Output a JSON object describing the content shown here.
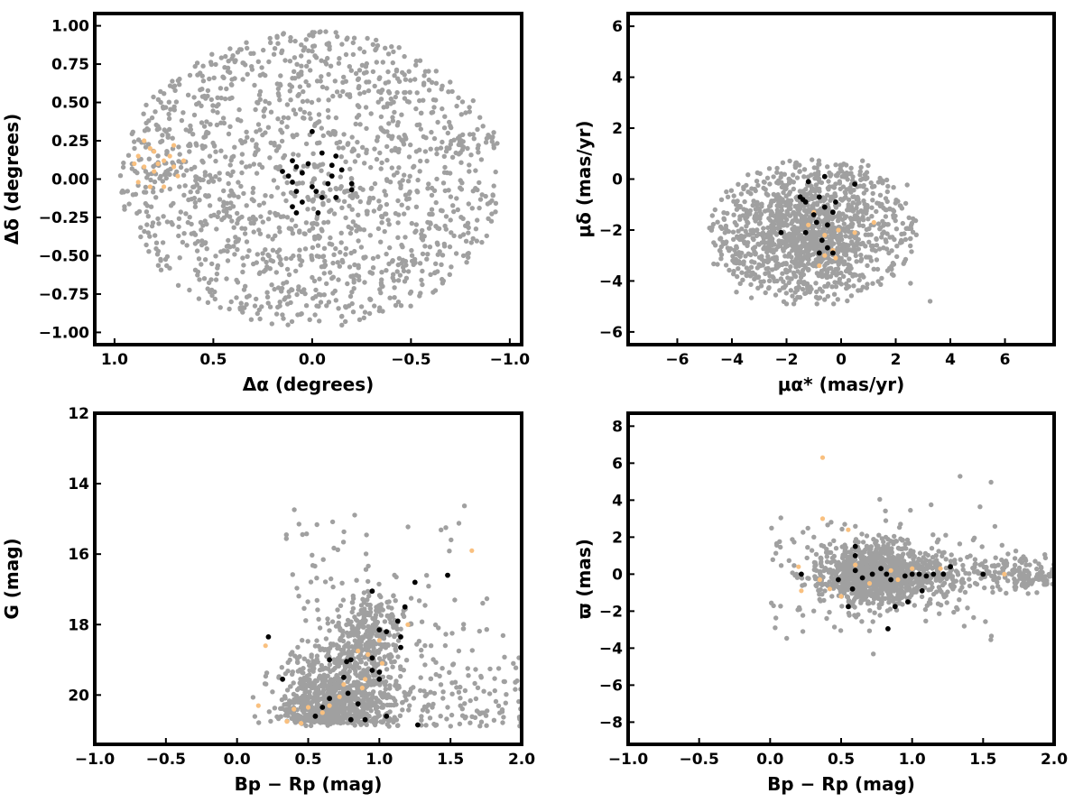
{
  "colors": {
    "background_stars": "#a0a0a0",
    "members": "#000000",
    "secondary": "#f9c07f"
  },
  "chart_data": [
    {
      "id": "sky",
      "type": "scatter",
      "xlabel": "Δα (degrees)",
      "ylabel": "Δδ (degrees)",
      "xlim": [
        1.1,
        -1.06
      ],
      "ylim": [
        -1.08,
        1.08
      ],
      "x_inverted": true,
      "xticks": [
        1.0,
        0.5,
        0.0,
        -0.5,
        -1.0
      ],
      "xtick_labels": [
        "1.0",
        "0.5",
        "0.0",
        "−0.5",
        "−1.0"
      ],
      "yticks": [
        1.0,
        0.75,
        0.5,
        0.25,
        0.0,
        -0.25,
        -0.5,
        -0.75,
        -1.0
      ],
      "ytick_labels": [
        "1.00",
        "0.75",
        "0.50",
        "0.25",
        "0.00",
        "−0.25",
        "−0.50",
        "−0.75",
        "−1.00"
      ],
      "background_field": {
        "shape": "disk",
        "center": [
          0.0,
          0.0
        ],
        "radius": 0.97,
        "count": 1500
      },
      "series": [
        {
          "color": "#000000",
          "points": [
            [
              0.15,
              0.05
            ],
            [
              0.1,
              0.12
            ],
            [
              0.08,
              0.08
            ],
            [
              0.05,
              0.04
            ],
            [
              0.0,
              0.31
            ],
            [
              -0.05,
              0.17
            ],
            [
              -0.1,
              0.09
            ],
            [
              -0.12,
              0.15
            ],
            [
              -0.15,
              0.06
            ],
            [
              -0.2,
              -0.03
            ],
            [
              -0.2,
              -0.07
            ],
            [
              0.1,
              -0.02
            ],
            [
              0.08,
              -0.08
            ],
            [
              0.05,
              -0.15
            ],
            [
              0.1,
              -0.18
            ],
            [
              0.08,
              -0.22
            ],
            [
              0.0,
              -0.05
            ],
            [
              -0.02,
              -0.08
            ],
            [
              -0.05,
              -0.12
            ],
            [
              -0.08,
              -0.03
            ],
            [
              -0.12,
              -0.12
            ],
            [
              -0.03,
              -0.22
            ],
            [
              -0.1,
              0.02
            ],
            [
              0.02,
              0.1
            ],
            [
              0.12,
              0.02
            ]
          ]
        },
        {
          "color": "#f9c07f",
          "points": [
            [
              0.85,
              0.25
            ],
            [
              0.82,
              0.2
            ],
            [
              0.88,
              0.15
            ],
            [
              0.8,
              0.18
            ],
            [
              0.75,
              0.12
            ],
            [
              0.7,
              0.22
            ],
            [
              0.72,
              0.15
            ],
            [
              0.78,
              0.1
            ],
            [
              0.85,
              0.08
            ],
            [
              0.8,
              0.05
            ],
            [
              0.88,
              -0.02
            ],
            [
              0.75,
              -0.05
            ],
            [
              0.68,
              0.02
            ],
            [
              0.65,
              0.12
            ],
            [
              0.7,
              0.08
            ],
            [
              0.9,
              0.1
            ],
            [
              0.82,
              -0.05
            ]
          ]
        }
      ]
    },
    {
      "id": "proper-motion",
      "type": "scatter",
      "xlabel": "μα* (mas/yr)",
      "ylabel": "μδ (mas/yr)",
      "xlim": [
        -7.8,
        7.8
      ],
      "ylim": [
        -6.5,
        6.5
      ],
      "xticks": [
        -6,
        -4,
        -2,
        0,
        2,
        4,
        6
      ],
      "xtick_labels": [
        "−6",
        "−4",
        "−2",
        "0",
        "2",
        "4",
        "6"
      ],
      "yticks": [
        6,
        4,
        2,
        0,
        -2,
        -4,
        -6
      ],
      "ytick_labels": [
        "6",
        "4",
        "2",
        "0",
        "−2",
        "−4",
        "−6"
      ],
      "background_field": {
        "shape": "ellipse",
        "center": [
          -1.0,
          -2.0
        ],
        "radius": [
          3.8,
          2.8
        ],
        "count": 1400
      },
      "series": [
        {
          "color": "#000000",
          "points": [
            [
              -1.2,
              -0.1
            ],
            [
              -1.5,
              -0.7
            ],
            [
              -1.3,
              -0.9
            ],
            [
              -0.8,
              -0.7
            ],
            [
              -0.6,
              -1.1
            ],
            [
              -0.3,
              -1.3
            ],
            [
              -0.5,
              -1.8
            ],
            [
              -0.9,
              -1.7
            ],
            [
              -1.3,
              -2.1
            ],
            [
              -0.7,
              -2.4
            ],
            [
              -0.5,
              -2.7
            ],
            [
              -0.3,
              -2.9
            ],
            [
              -0.8,
              -2.9
            ],
            [
              -0.6,
              0.1
            ],
            [
              -1.0,
              -1.4
            ],
            [
              -2.2,
              -2.1
            ],
            [
              0.5,
              -0.2
            ],
            [
              -1.4,
              -0.8
            ],
            [
              -0.2,
              -0.9
            ]
          ]
        },
        {
          "color": "#f9c07f",
          "points": [
            [
              -1.0,
              -1.3
            ],
            [
              -0.6,
              -2.2
            ],
            [
              -0.3,
              -2.8
            ],
            [
              -0.8,
              -3.4
            ],
            [
              -0.2,
              -3.1
            ],
            [
              0.5,
              -2.1
            ],
            [
              1.2,
              -1.7
            ],
            [
              -0.1,
              -2.0
            ],
            [
              -0.6,
              -3.0
            ],
            [
              -1.2,
              -1.8
            ]
          ]
        }
      ]
    },
    {
      "id": "cmd",
      "type": "scatter",
      "xlabel": "Bp − Rp (mag)",
      "ylabel": "G (mag)",
      "xlim": [
        -1.0,
        2.0
      ],
      "ylim": [
        12.0,
        21.4
      ],
      "y_inverted": true,
      "xticks": [
        -1.0,
        -0.5,
        0.0,
        0.5,
        1.0,
        1.5,
        2.0
      ],
      "xtick_labels": [
        "−1.0",
        "−0.5",
        "0.0",
        "0.5",
        "1.0",
        "1.5",
        "2.0"
      ],
      "yticks": [
        20,
        18,
        16,
        14,
        12
      ],
      "ytick_labels": [
        "20",
        "18",
        "16",
        "14",
        "12"
      ],
      "background_field": {
        "shape": "cmd",
        "count": 1500
      },
      "series": [
        {
          "color": "#000000",
          "points": [
            [
              0.55,
              20.6
            ],
            [
              0.6,
              20.35
            ],
            [
              0.65,
              20.1
            ],
            [
              0.8,
              20.7
            ],
            [
              0.9,
              20.7
            ],
            [
              1.05,
              20.6
            ],
            [
              1.27,
              20.85
            ],
            [
              0.85,
              20.25
            ],
            [
              0.78,
              19.95
            ],
            [
              1.0,
              19.55
            ],
            [
              0.95,
              19.3
            ],
            [
              0.75,
              19.5
            ],
            [
              1.0,
              19.35
            ],
            [
              0.65,
              19.0
            ],
            [
              0.8,
              19.0
            ],
            [
              0.95,
              18.95
            ],
            [
              1.15,
              18.65
            ],
            [
              1.15,
              18.35
            ],
            [
              1.05,
              18.2
            ],
            [
              1.0,
              18.15
            ],
            [
              1.13,
              17.9
            ],
            [
              1.18,
              17.5
            ],
            [
              0.95,
              17.05
            ],
            [
              1.25,
              16.8
            ],
            [
              1.48,
              16.6
            ],
            [
              0.32,
              19.55
            ],
            [
              0.22,
              18.35
            ],
            [
              0.77,
              19.05
            ]
          ]
        },
        {
          "color": "#f9c07f",
          "points": [
            [
              0.35,
              20.75
            ],
            [
              0.45,
              20.8
            ],
            [
              0.6,
              20.5
            ],
            [
              0.65,
              20.3
            ],
            [
              0.72,
              20.05
            ],
            [
              0.88,
              19.8
            ],
            [
              0.9,
              19.55
            ],
            [
              1.02,
              19.1
            ],
            [
              0.92,
              18.85
            ],
            [
              0.85,
              18.75
            ],
            [
              1.2,
              18.0
            ],
            [
              0.2,
              18.6
            ],
            [
              0.15,
              20.3
            ],
            [
              1.65,
              15.9
            ],
            [
              0.5,
              20.35
            ],
            [
              0.4,
              20.4
            ],
            [
              0.75,
              19.7
            ],
            [
              1.0,
              18.45
            ]
          ]
        }
      ]
    },
    {
      "id": "parallax",
      "type": "scatter",
      "xlabel": "Bp − Rp (mag)",
      "ylabel": "ϖ (mas)",
      "xlim": [
        -1.0,
        2.0
      ],
      "ylim": [
        -9.2,
        8.7
      ],
      "xticks": [
        -1.0,
        -0.5,
        0.0,
        0.5,
        1.0,
        1.5,
        2.0
      ],
      "xtick_labels": [
        "−1.0",
        "−0.5",
        "0.0",
        "0.5",
        "1.0",
        "1.5",
        "2.0"
      ],
      "yticks": [
        8,
        6,
        4,
        2,
        0,
        -2,
        -4,
        -6,
        -8
      ],
      "ytick_labels": [
        "8",
        "6",
        "4",
        "2",
        "0",
        "−2",
        "−4",
        "−6",
        "−8"
      ],
      "background_field": {
        "shape": "parallax",
        "count": 1500
      },
      "series": [
        {
          "color": "#000000",
          "points": [
            [
              0.22,
              0.0
            ],
            [
              0.48,
              -0.3
            ],
            [
              0.55,
              -1.75
            ],
            [
              0.58,
              -0.8
            ],
            [
              0.6,
              1.5
            ],
            [
              0.6,
              1.0
            ],
            [
              0.65,
              -0.2
            ],
            [
              0.72,
              0.0
            ],
            [
              0.78,
              0.3
            ],
            [
              0.82,
              0.0
            ],
            [
              0.85,
              -0.3
            ],
            [
              0.88,
              -1.75
            ],
            [
              0.83,
              -2.95
            ],
            [
              0.97,
              -1.5
            ],
            [
              1.0,
              0.0
            ],
            [
              1.05,
              0.0
            ],
            [
              1.07,
              -0.9
            ],
            [
              1.1,
              -0.1
            ],
            [
              1.15,
              0.0
            ],
            [
              1.22,
              0.0
            ],
            [
              1.27,
              0.4
            ],
            [
              1.5,
              0.0
            ],
            [
              0.6,
              0.2
            ],
            [
              0.95,
              -0.1
            ]
          ]
        },
        {
          "color": "#f9c07f",
          "points": [
            [
              0.37,
              6.3
            ],
            [
              0.37,
              3.0
            ],
            [
              0.2,
              0.4
            ],
            [
              0.22,
              -0.9
            ],
            [
              0.35,
              -0.3
            ],
            [
              0.42,
              -0.8
            ],
            [
              0.5,
              -1.2
            ],
            [
              0.55,
              2.4
            ],
            [
              0.6,
              0.5
            ],
            [
              0.7,
              -0.5
            ],
            [
              0.9,
              -0.3
            ],
            [
              1.2,
              0.3
            ],
            [
              1.65,
              0.0
            ],
            [
              0.85,
              0.2
            ],
            [
              1.0,
              0.3
            ]
          ]
        }
      ]
    }
  ]
}
